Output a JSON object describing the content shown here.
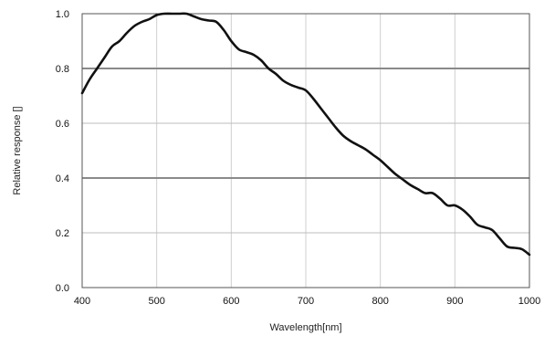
{
  "chart_data": {
    "type": "line",
    "xlabel": "Wavelength[nm]",
    "ylabel": "Relative response []",
    "xlim": [
      400,
      1000
    ],
    "ylim": [
      0,
      1
    ],
    "x_ticks": [
      "400",
      "500",
      "600",
      "700",
      "800",
      "900",
      "1000"
    ],
    "y_ticks": [
      "0.0",
      "0.2",
      "0.4",
      "0.6",
      "0.8",
      "1.0"
    ],
    "grid": true,
    "series": [
      {
        "x": [
          400,
          410,
          420,
          430,
          440,
          450,
          460,
          470,
          480,
          490,
          500,
          510,
          520,
          530,
          540,
          550,
          560,
          570,
          580,
          590,
          600,
          610,
          620,
          630,
          640,
          650,
          660,
          670,
          680,
          690,
          700,
          710,
          720,
          730,
          740,
          750,
          760,
          770,
          780,
          790,
          800,
          810,
          820,
          830,
          840,
          850,
          860,
          870,
          880,
          890,
          900,
          910,
          920,
          930,
          940,
          950,
          960,
          970,
          980,
          990,
          1000
        ],
        "y": [
          0.71,
          0.76,
          0.8,
          0.84,
          0.88,
          0.9,
          0.93,
          0.955,
          0.97,
          0.98,
          0.995,
          1.0,
          1.0,
          1.0,
          1.0,
          0.99,
          0.98,
          0.975,
          0.97,
          0.94,
          0.9,
          0.87,
          0.86,
          0.85,
          0.83,
          0.8,
          0.78,
          0.755,
          0.74,
          0.73,
          0.72,
          0.69,
          0.655,
          0.62,
          0.585,
          0.555,
          0.535,
          0.52,
          0.505,
          0.485,
          0.465,
          0.44,
          0.415,
          0.395,
          0.375,
          0.36,
          0.345,
          0.345,
          0.325,
          0.3,
          0.3,
          0.285,
          0.26,
          0.23,
          0.22,
          0.21,
          0.18,
          0.15,
          0.145,
          0.14,
          0.12
        ]
      }
    ]
  }
}
